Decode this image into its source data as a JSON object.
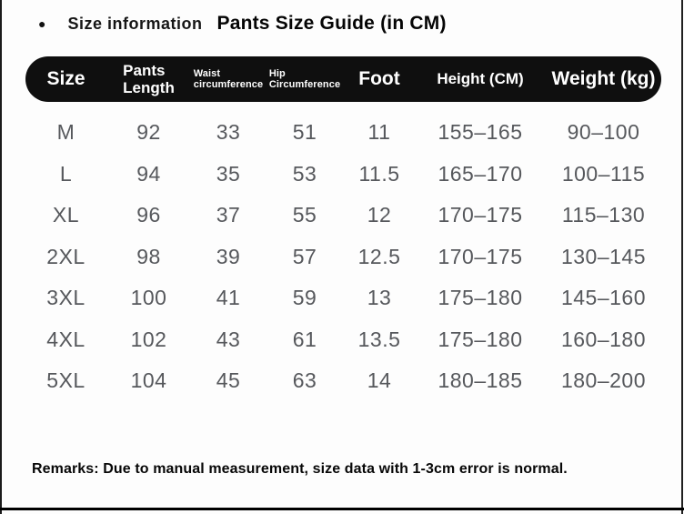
{
  "header": {
    "bullet_icon": "●",
    "section_label": "Size information",
    "title": "Pants Size Guide (in CM)"
  },
  "table": {
    "columns": {
      "size": "Size",
      "pants_length_line1": "Pants",
      "pants_length_line2": "Length",
      "waist_line1": "Waist",
      "waist_line2": "circumference",
      "hip_line1": "Hip",
      "hip_line2": "Circumference",
      "foot": "Foot",
      "height": "Height (CM)",
      "weight": "Weight (kg)"
    },
    "rows": [
      {
        "size": "M",
        "pants_length": "92",
        "waist": "33",
        "hip": "51",
        "foot": "11",
        "height": "155–165",
        "weight": "90–100"
      },
      {
        "size": "L",
        "pants_length": "94",
        "waist": "35",
        "hip": "53",
        "foot": "11.5",
        "height": "165–170",
        "weight": "100–115"
      },
      {
        "size": "XL",
        "pants_length": "96",
        "waist": "37",
        "hip": "55",
        "foot": "12",
        "height": "170–175",
        "weight": "115–130"
      },
      {
        "size": "2XL",
        "pants_length": "98",
        "waist": "39",
        "hip": "57",
        "foot": "12.5",
        "height": "170–175",
        "weight": "130–145"
      },
      {
        "size": "3XL",
        "pants_length": "100",
        "waist": "41",
        "hip": "59",
        "foot": "13",
        "height": "175–180",
        "weight": "145–160"
      },
      {
        "size": "4XL",
        "pants_length": "102",
        "waist": "43",
        "hip": "61",
        "foot": "13.5",
        "height": "175–180",
        "weight": "160–180"
      },
      {
        "size": "5XL",
        "pants_length": "104",
        "waist": "45",
        "hip": "63",
        "foot": "14",
        "height": "180–185",
        "weight": "180–200"
      }
    ]
  },
  "colors": {
    "header_bar": "#0f0f0f",
    "header_text": "#ffffff",
    "data_text": "#56585c"
  },
  "remarks": "Remarks: Due to manual measurement, size data with 1-3cm error is normal."
}
